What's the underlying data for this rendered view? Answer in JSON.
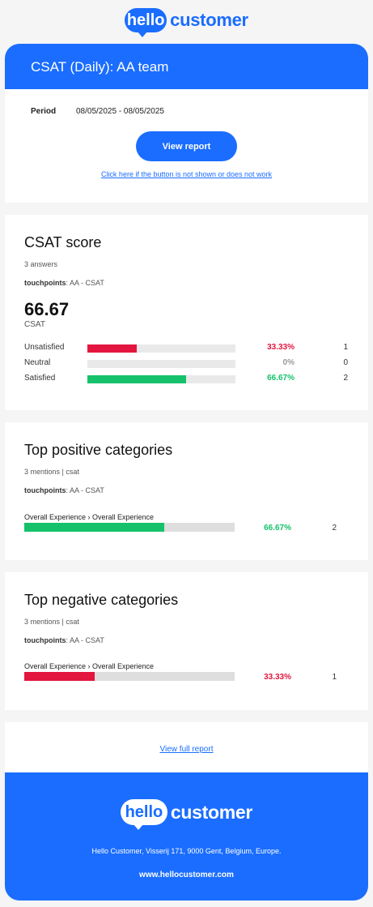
{
  "brand": {
    "logo_bubble": "hello",
    "logo_word": "customer",
    "primary_color": "#1a6dff"
  },
  "report": {
    "title": "CSAT (Daily): AA team",
    "period_label": "Period",
    "period_value": "08/05/2025 - 08/05/2025",
    "view_button": "View report",
    "fallback_link": "Click here if the button is not shown or does not work"
  },
  "score": {
    "title": "CSAT score",
    "answers": "3 answers",
    "touchpoints_label": "touchpoints",
    "touchpoints_value": ": AA - CSAT",
    "value": "66.67",
    "unit": "CSAT",
    "rows": [
      {
        "label": "Unsatisfied",
        "percent": "33.33%",
        "fraction": 0.3333,
        "count": "1",
        "color": "#e3163f"
      },
      {
        "label": "Neutral",
        "percent": "0%",
        "fraction": 0,
        "count": "0",
        "color": "#999999"
      },
      {
        "label": "Satisfied",
        "percent": "66.67%",
        "fraction": 0.6667,
        "count": "2",
        "color": "#15c26b"
      }
    ]
  },
  "positive": {
    "title": "Top positive categories",
    "mentions": "3 mentions | csat",
    "touchpoints_label": "touchpoints",
    "touchpoints_value": ": AA - CSAT",
    "items": [
      {
        "name": "Overall Experience › Overall Experience",
        "percent": "66.67%",
        "fraction": 0.6667,
        "count": "2",
        "color": "#15c26b"
      }
    ]
  },
  "negative": {
    "title": "Top negative categories",
    "mentions": "3 mentions | csat",
    "touchpoints_label": "touchpoints",
    "touchpoints_value": ": AA - CSAT",
    "items": [
      {
        "name": "Overall Experience › Overall Experience",
        "percent": "33.33%",
        "fraction": 0.3333,
        "count": "1",
        "color": "#e3163f"
      }
    ]
  },
  "full_report_link": "View full report",
  "footer": {
    "address": "Hello Customer, Visserij 171, 9000 Gent, Belgium, Europe.",
    "website": "www.hellocustomer.com"
  }
}
